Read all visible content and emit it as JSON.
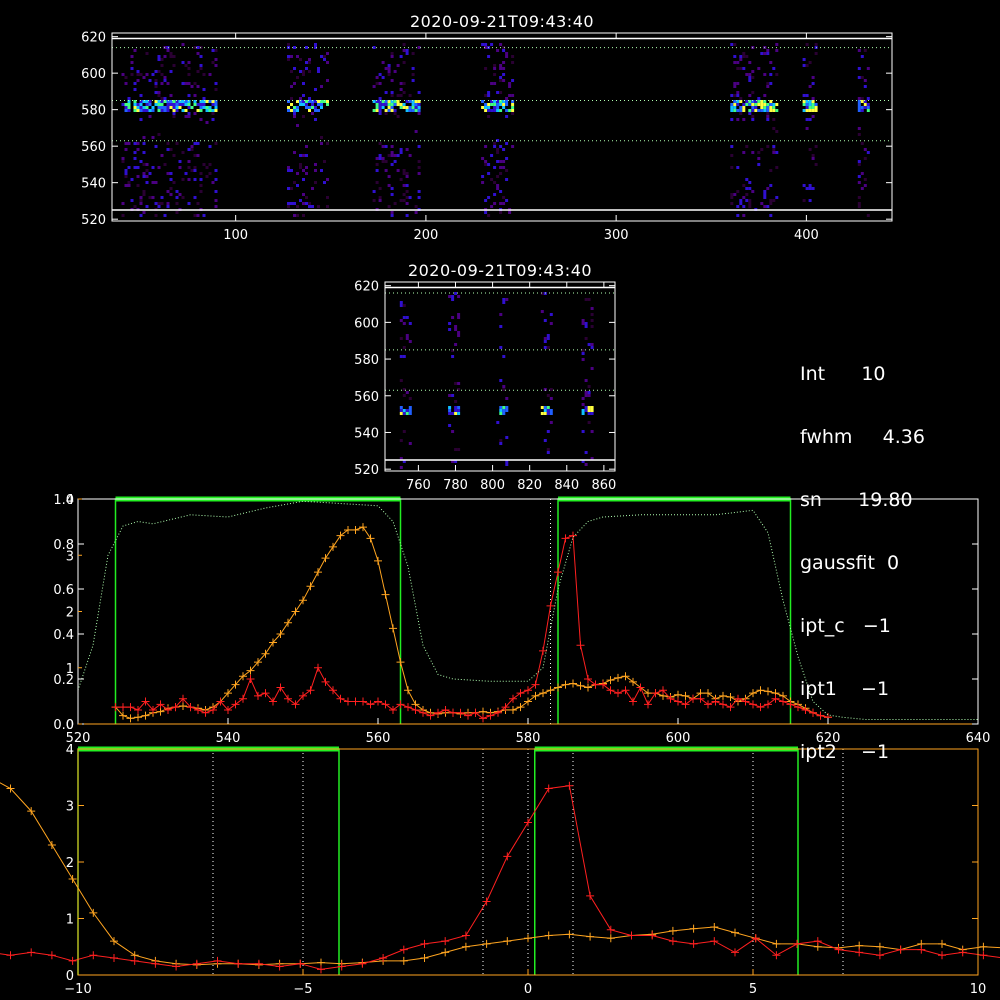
{
  "colors": {
    "background": "#000000",
    "axes": "#ffffff",
    "orange": "#ffa520",
    "red": "#ff2020",
    "green": "#22ee22",
    "green_dotted": "#b0ffb0",
    "colormap": [
      "#2a0033",
      "#4b0082",
      "#3010d0",
      "#2060ff",
      "#10c0ff",
      "#40ff80",
      "#ffff40"
    ]
  },
  "info_panel": {
    "lines": [
      "Int      10",
      "fwhm     4.36",
      "sn      19.80",
      "gaussfit  0",
      "ipt_c   −1",
      "ipt1    −1",
      "ipt2    −1"
    ]
  },
  "chart_data": [
    {
      "type": "heatmap",
      "title": "2020-09-21T09:43:40",
      "xlim": [
        35,
        445
      ],
      "ylim": [
        519,
        622
      ],
      "xticks": [
        100,
        200,
        300,
        400
      ],
      "yticks": [
        520,
        540,
        560,
        580,
        600,
        620
      ],
      "hlines_solid": [
        525,
        619
      ],
      "hlines_dotted": [
        585,
        614,
        563
      ],
      "bands": [
        [
          40,
          90
        ],
        [
          127,
          148
        ],
        [
          172,
          196
        ],
        [
          229,
          245
        ],
        [
          360,
          385
        ],
        [
          398,
          405
        ],
        [
          427,
          432
        ]
      ],
      "bright_row": 583
    },
    {
      "type": "heatmap",
      "title": "2020-09-21T09:43:40",
      "xlim": [
        742,
        866
      ],
      "ylim": [
        519,
        622
      ],
      "xticks": [
        760,
        780,
        800,
        820,
        840,
        860
      ],
      "yticks": [
        520,
        540,
        560,
        580,
        600,
        620
      ],
      "hlines_solid": [
        525,
        619
      ],
      "hlines_dotted": [
        616,
        585,
        563
      ],
      "bands": [
        [
          750,
          756
        ],
        [
          776,
          782
        ],
        [
          802,
          808
        ],
        [
          826,
          832
        ],
        [
          848,
          854
        ]
      ],
      "bright_row": 553
    },
    {
      "type": "line",
      "xlim": [
        520,
        640
      ],
      "ylim_left": [
        0,
        1.0
      ],
      "ylim_right": [
        0,
        4
      ],
      "xticks": [
        520,
        540,
        560,
        580,
        600,
        620,
        640
      ],
      "yticks_left": [
        "0.0",
        "0.2",
        "0.4",
        "0.6",
        "0.8",
        "1.0"
      ],
      "yticks_right": [
        "0",
        "1",
        "2",
        "3",
        "4"
      ],
      "vline_dotted": 583,
      "green_boxes": [
        [
          525,
          563
        ],
        [
          584,
          615
        ]
      ],
      "series": [
        {
          "color": "orange",
          "x": [
            525,
            526,
            527,
            528,
            529,
            530,
            531,
            532,
            533,
            534,
            535,
            536,
            537,
            538,
            539,
            540,
            541,
            542,
            543,
            544,
            545,
            546,
            547,
            548,
            549,
            550,
            551,
            552,
            553,
            554,
            555,
            556,
            557,
            558,
            559,
            560,
            561,
            562,
            563,
            564,
            565,
            566,
            567,
            568,
            569,
            570,
            571,
            572,
            573,
            574,
            575,
            576,
            577,
            578,
            579,
            580,
            581,
            582,
            583,
            584,
            585,
            586,
            587,
            588,
            589,
            590,
            591,
            592,
            593,
            594,
            595,
            596,
            597,
            598,
            599,
            600,
            601,
            602,
            603,
            604,
            605,
            606,
            607,
            608,
            609,
            610,
            611,
            612,
            613,
            614,
            615,
            616,
            617,
            618,
            619,
            620
          ],
          "y": [
            0.3,
            0.15,
            0.1,
            0.12,
            0.15,
            0.2,
            0.22,
            0.28,
            0.3,
            0.32,
            0.3,
            0.28,
            0.25,
            0.3,
            0.4,
            0.55,
            0.7,
            0.85,
            0.95,
            1.1,
            1.25,
            1.45,
            1.6,
            1.8,
            2.0,
            2.2,
            2.45,
            2.7,
            2.95,
            3.15,
            3.35,
            3.45,
            3.45,
            3.5,
            3.3,
            2.9,
            2.3,
            1.7,
            1.1,
            0.6,
            0.35,
            0.25,
            0.2,
            0.18,
            0.2,
            0.2,
            0.18,
            0.2,
            0.2,
            0.22,
            0.2,
            0.22,
            0.25,
            0.25,
            0.3,
            0.4,
            0.5,
            0.55,
            0.6,
            0.65,
            0.7,
            0.72,
            0.68,
            0.65,
            0.7,
            0.72,
            0.78,
            0.82,
            0.85,
            0.75,
            0.65,
            0.55,
            0.55,
            0.5,
            0.48,
            0.52,
            0.5,
            0.45,
            0.55,
            0.55,
            0.45,
            0.5,
            0.48,
            0.4,
            0.45,
            0.55,
            0.6,
            0.58,
            0.55,
            0.5,
            0.4,
            0.35,
            0.28,
            0.2,
            0.15,
            0.12
          ]
        },
        {
          "color": "red",
          "x": [
            525,
            526,
            527,
            528,
            529,
            530,
            531,
            532,
            533,
            534,
            535,
            536,
            537,
            538,
            539,
            540,
            541,
            542,
            543,
            544,
            545,
            546,
            547,
            548,
            549,
            550,
            551,
            552,
            553,
            554,
            555,
            556,
            557,
            558,
            559,
            560,
            561,
            562,
            563,
            564,
            565,
            566,
            567,
            568,
            569,
            570,
            571,
            572,
            573,
            574,
            575,
            576,
            577,
            578,
            579,
            580,
            581,
            582,
            583,
            584,
            585,
            586,
            587,
            588,
            589,
            590,
            591,
            592,
            593,
            594,
            595,
            596,
            597,
            598,
            599,
            600,
            601,
            602,
            603,
            604,
            605,
            606,
            607,
            608,
            609,
            610,
            611,
            612,
            613,
            614,
            615,
            616,
            617,
            618,
            619,
            620
          ],
          "y": [
            0.3,
            0.3,
            0.3,
            0.25,
            0.4,
            0.25,
            0.35,
            0.25,
            0.3,
            0.45,
            0.3,
            0.25,
            0.2,
            0.25,
            0.4,
            0.25,
            0.35,
            0.45,
            0.8,
            0.5,
            0.55,
            0.4,
            0.65,
            0.45,
            0.35,
            0.5,
            0.6,
            1.0,
            0.75,
            0.6,
            0.45,
            0.4,
            0.4,
            0.4,
            0.35,
            0.4,
            0.35,
            0.25,
            0.35,
            0.3,
            0.25,
            0.2,
            0.15,
            0.2,
            0.25,
            0.2,
            0.2,
            0.15,
            0.2,
            0.1,
            0.15,
            0.2,
            0.3,
            0.45,
            0.55,
            0.6,
            0.7,
            1.3,
            2.1,
            2.7,
            3.3,
            3.35,
            1.4,
            0.8,
            0.7,
            0.7,
            0.6,
            0.55,
            0.6,
            0.4,
            0.65,
            0.35,
            0.55,
            0.6,
            0.45,
            0.4,
            0.35,
            0.45,
            0.45,
            0.35,
            0.4,
            0.35,
            0.3,
            0.45,
            0.4,
            0.35,
            0.3,
            0.35,
            0.45,
            0.4,
            0.35,
            0.3,
            0.25,
            0.2,
            0.15,
            0.12
          ]
        },
        {
          "color": "green_dotted",
          "x": [
            520,
            522,
            524,
            526,
            528,
            530,
            535,
            540,
            545,
            550,
            555,
            560,
            562,
            564,
            566,
            568,
            570,
            575,
            580,
            582,
            584,
            586,
            588,
            590,
            595,
            600,
            605,
            610,
            612,
            614,
            616,
            618,
            620,
            622,
            625,
            630,
            640
          ],
          "y": [
            0.15,
            0.35,
            0.75,
            0.88,
            0.9,
            0.89,
            0.93,
            0.92,
            0.96,
            0.99,
            0.98,
            0.97,
            0.9,
            0.7,
            0.35,
            0.22,
            0.2,
            0.19,
            0.19,
            0.25,
            0.6,
            0.83,
            0.9,
            0.92,
            0.93,
            0.93,
            0.93,
            0.95,
            0.85,
            0.55,
            0.3,
            0.1,
            0.04,
            0.03,
            0.02,
            0.02,
            0.02
          ]
        }
      ]
    },
    {
      "type": "line",
      "xlim": [
        -10,
        10
      ],
      "ylim": [
        0,
        4
      ],
      "xticks": [
        "−10",
        "−5",
        "0",
        "5",
        "10"
      ],
      "yticks": [
        "0",
        "1",
        "2",
        "3",
        "4"
      ],
      "vlines_dotted": [
        -7,
        -5,
        -1,
        0,
        1,
        5,
        7
      ],
      "green_boxes": [
        [
          -10,
          -4.2
        ],
        [
          0.15,
          6.0
        ]
      ],
      "series_note": "same profiles as panel 3 plotted against shifted x"
    }
  ]
}
